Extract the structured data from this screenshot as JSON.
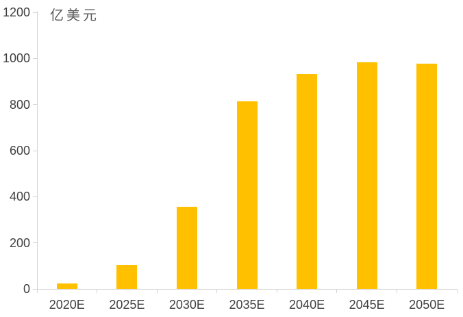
{
  "chart_data": {
    "type": "bar",
    "title": "",
    "unit_label": "亿美元",
    "categories": [
      "2020E",
      "2025E",
      "2030E",
      "2035E",
      "2040E",
      "2045E",
      "2050E"
    ],
    "values": [
      25,
      105,
      357,
      815,
      933,
      982,
      978
    ],
    "xlabel": "",
    "ylabel": "亿美元",
    "ylim": [
      0,
      1200
    ],
    "yticks": [
      0,
      200,
      400,
      600,
      800,
      1000,
      1200
    ],
    "grid": false,
    "legend_position": "none",
    "colors": {
      "bar": "#FFC000",
      "axis": "#D4D4D4",
      "tick_label": "#3F3F3F",
      "unit_label": "#595959",
      "background": "#FFFFFF"
    }
  }
}
